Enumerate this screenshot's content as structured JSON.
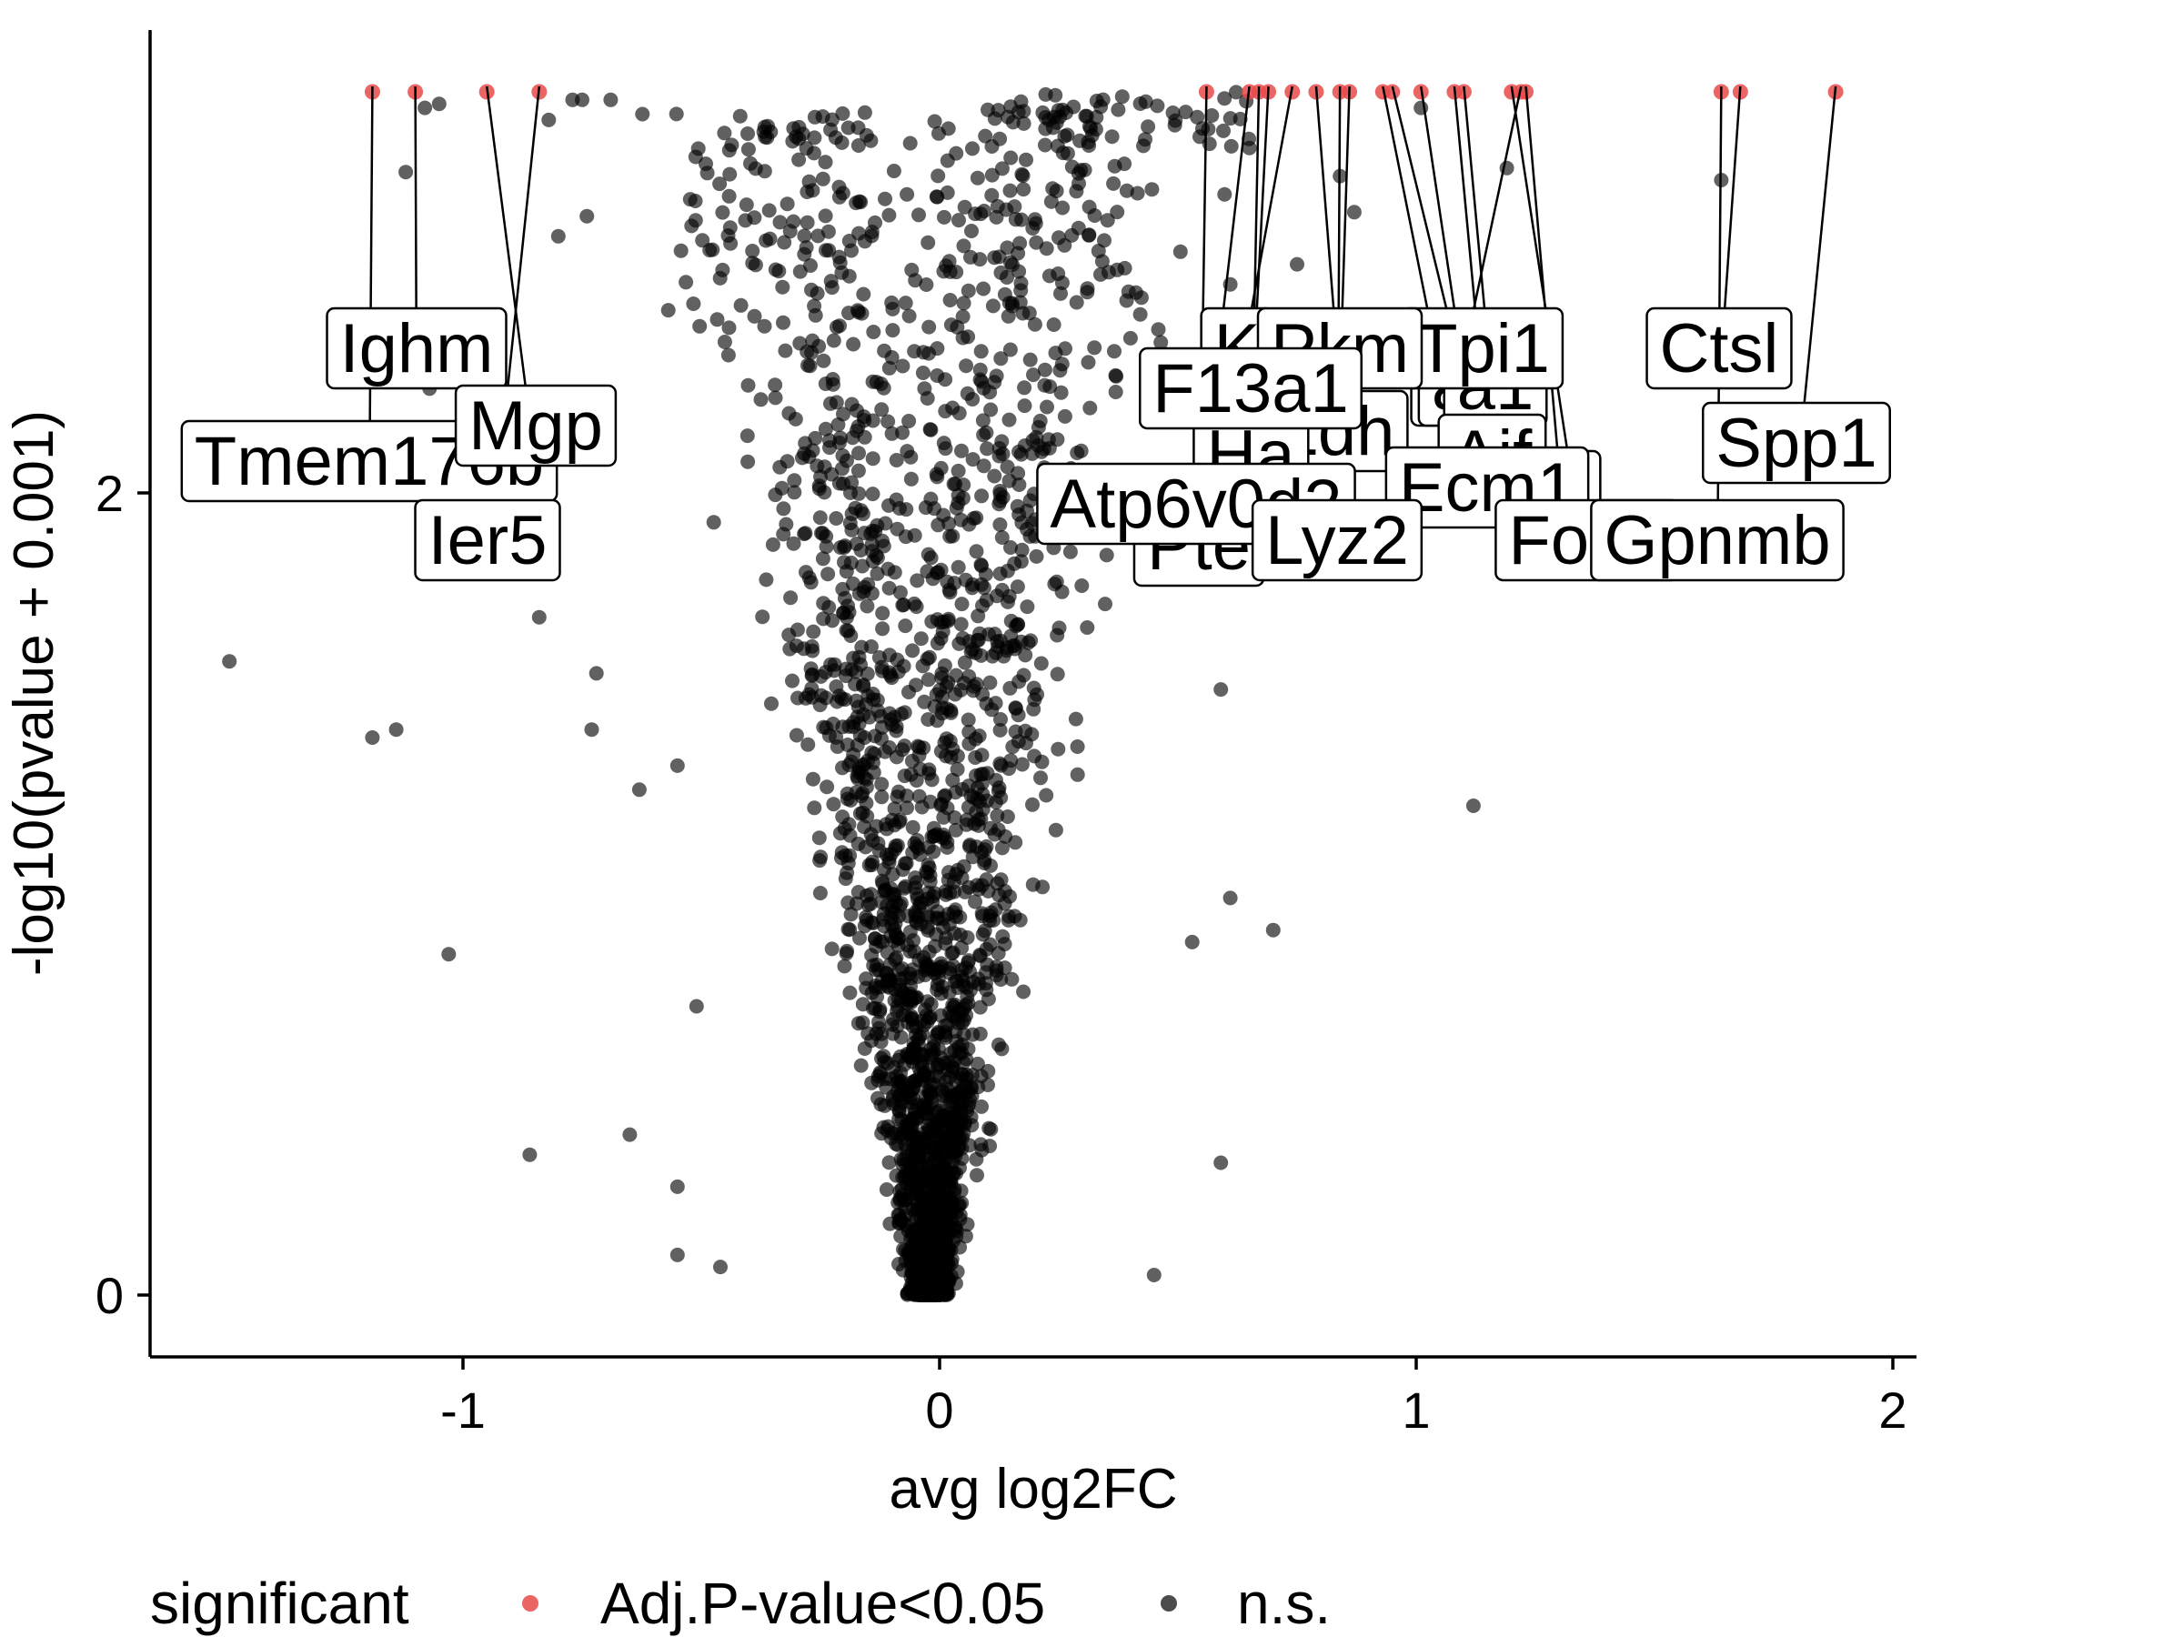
{
  "chart_data": {
    "type": "scatter",
    "title": "",
    "xlabel": "avg log2FC",
    "ylabel": "-log10(pvalue + 0.001)",
    "xlim": [
      -1.65,
      2.05
    ],
    "ylim": [
      -0.3,
      6.3
    ],
    "x_ticks": [
      "-1",
      "0",
      "1",
      "2"
    ],
    "x_tick_values": [
      -1,
      0,
      1,
      2
    ],
    "y_ticks": [
      "0",
      "2",
      "4",
      "6"
    ],
    "y_tick_values": [
      0,
      2,
      4,
      6
    ],
    "grid": false,
    "legend": {
      "position": "bottom",
      "title": "significant",
      "entries": [
        {
          "label": "Adj.P-value<0.05",
          "color": "#e84a4a"
        },
        {
          "label": "n.s.",
          "color": "#1f1f1f"
        }
      ]
    },
    "colors": {
      "significant": "#e84a4a",
      "ns": "#000000"
    },
    "series": [
      {
        "name": "Adj.P-value<0.05",
        "points": [
          {
            "x": -1.19,
            "y": 3.0,
            "label": "Tmem176b"
          },
          {
            "x": -1.1,
            "y": 3.0,
            "label": "Ighm"
          },
          {
            "x": -0.95,
            "y": 3.0,
            "label": "Mgp"
          },
          {
            "x": -0.84,
            "y": 3.0,
            "label": "Ier5"
          },
          {
            "x": 0.56,
            "y": 3.0,
            "label": "Pte"
          },
          {
            "x": 0.65,
            "y": 3.0,
            "label": "Atp6v0d2"
          },
          {
            "x": 0.67,
            "y": 3.0,
            "label": "Ha"
          },
          {
            "x": 0.69,
            "y": 3.0,
            "label": "F13a1"
          },
          {
            "x": 0.74,
            "y": 3.0,
            "label": "K"
          },
          {
            "x": 0.79,
            "y": 3.0,
            "label": "Pkm"
          },
          {
            "x": 0.84,
            "y": 3.0,
            "label": "Lyz2"
          },
          {
            "x": 0.86,
            "y": 3.0,
            "label": "Ldh"
          },
          {
            "x": 0.93,
            "y": 3.0,
            "label": "a"
          },
          {
            "x": 0.95,
            "y": 3.0,
            "label": "Aif"
          },
          {
            "x": 1.01,
            "y": 3.0,
            "label": "Ecm1"
          },
          {
            "x": 1.08,
            "y": 3.0,
            "label": "Tpi1"
          },
          {
            "x": 1.1,
            "y": 3.0,
            "label": "a1"
          },
          {
            "x": 1.2,
            "y": 3.0,
            "label": "Folr2"
          },
          {
            "x": 1.22,
            "y": 3.0,
            "label": "C"
          },
          {
            "x": 1.23,
            "y": 3.0,
            "label": "S"
          },
          {
            "x": 1.64,
            "y": 3.0,
            "label": "Gpnmb"
          },
          {
            "x": 1.68,
            "y": 3.0,
            "label": "Ctsl"
          },
          {
            "x": 1.88,
            "y": 3.0,
            "label": "Spp1"
          }
        ]
      },
      {
        "name": "n.s.",
        "generated_cloud": true,
        "outliers": [
          {
            "x": -1.49,
            "y": 1.58
          },
          {
            "x": -1.19,
            "y": 1.39
          },
          {
            "x": -1.14,
            "y": 1.41
          },
          {
            "x": -1.12,
            "y": 2.8
          },
          {
            "x": -1.08,
            "y": 2.96
          },
          {
            "x": -1.05,
            "y": 2.97
          },
          {
            "x": -1.07,
            "y": 2.26
          },
          {
            "x": -1.03,
            "y": 0.85
          },
          {
            "x": -0.86,
            "y": 0.35
          },
          {
            "x": -0.84,
            "y": 1.69
          },
          {
            "x": -0.82,
            "y": 2.93
          },
          {
            "x": -0.8,
            "y": 2.64
          },
          {
            "x": -0.77,
            "y": 2.98
          },
          {
            "x": -0.75,
            "y": 2.98
          },
          {
            "x": -0.74,
            "y": 2.69
          },
          {
            "x": -0.73,
            "y": 1.41
          },
          {
            "x": -0.72,
            "y": 1.55
          },
          {
            "x": -0.69,
            "y": 2.98
          },
          {
            "x": -0.63,
            "y": 1.26
          },
          {
            "x": -0.55,
            "y": 1.32
          },
          {
            "x": -0.65,
            "y": 0.4
          },
          {
            "x": -0.55,
            "y": 0.27
          },
          {
            "x": -0.55,
            "y": 0.1
          },
          {
            "x": -0.46,
            "y": 0.07
          },
          {
            "x": -0.51,
            "y": 0.72
          },
          {
            "x": 0.45,
            "y": 0.05
          },
          {
            "x": 0.53,
            "y": 0.88
          },
          {
            "x": 0.59,
            "y": 0.33
          },
          {
            "x": 0.61,
            "y": 0.99
          },
          {
            "x": 0.7,
            "y": 0.91
          },
          {
            "x": 0.59,
            "y": 1.51
          },
          {
            "x": 0.6,
            "y": 2.22
          },
          {
            "x": 0.61,
            "y": 2.52
          },
          {
            "x": 0.65,
            "y": 2.86
          },
          {
            "x": 0.73,
            "y": 2.36
          },
          {
            "x": 0.75,
            "y": 2.57
          },
          {
            "x": 0.77,
            "y": 2.41
          },
          {
            "x": 0.75,
            "y": 2.11
          },
          {
            "x": 0.87,
            "y": 2.7
          },
          {
            "x": 0.84,
            "y": 2.79
          },
          {
            "x": 1.01,
            "y": 2.96
          },
          {
            "x": 1.12,
            "y": 1.22
          },
          {
            "x": 1.19,
            "y": 2.81
          },
          {
            "x": 1.64,
            "y": 2.78
          }
        ]
      }
    ]
  }
}
